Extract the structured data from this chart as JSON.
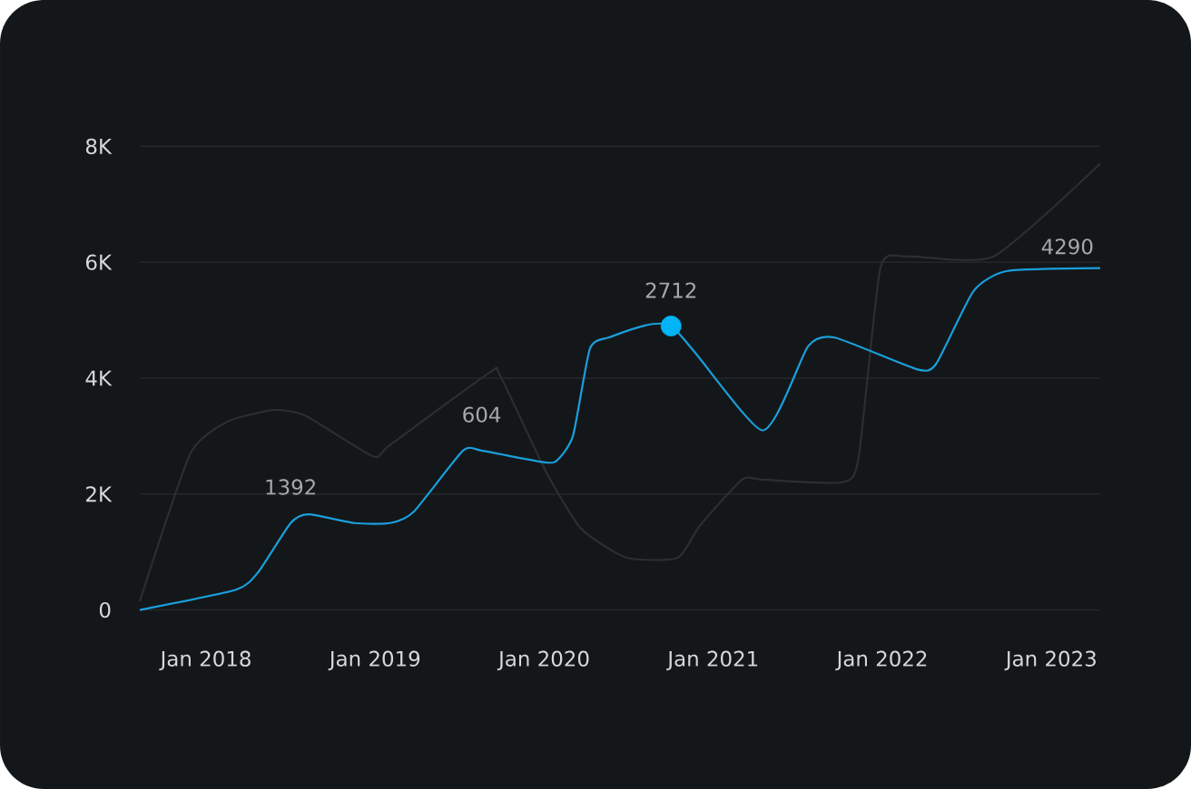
{
  "chart_data": {
    "type": "line",
    "xlim": [
      "2017-08-10",
      "2023-04-15"
    ],
    "ylim": [
      0,
      8000
    ],
    "xticks": [
      {
        "value": "2018-01-01",
        "label": "Jan 2018"
      },
      {
        "value": "2019-01-01",
        "label": "Jan 2019"
      },
      {
        "value": "2020-01-01",
        "label": "Jan 2020"
      },
      {
        "value": "2021-01-01",
        "label": "Jan 2021"
      },
      {
        "value": "2022-01-01",
        "label": "Jan 2022"
      },
      {
        "value": "2023-01-01",
        "label": "Jan 2023"
      }
    ],
    "yticks": [
      0,
      {
        "value": 2000,
        "label": "2K"
      },
      {
        "value": 4000,
        "label": "4K"
      },
      {
        "value": 6000,
        "label": "6K"
      },
      {
        "value": 8000,
        "label": "8K"
      }
    ],
    "grid": "y",
    "annotations": [
      {
        "text": "1392",
        "x": "2018-07-01",
        "y": 1500
      },
      {
        "text": "604",
        "x": "2019-08-18",
        "y": 2750
      },
      {
        "text": "2712",
        "x": "2020-10-01",
        "y": 4900
      },
      {
        "text": "4290",
        "x": "2023-04-15",
        "y": 5900
      }
    ],
    "series": [
      {
        "color": "#2c2e30",
        "x": [
          "2017-08-10",
          "2017-11-28",
          "2018-02-17",
          "2018-05-25",
          "2018-08-03",
          "2018-12-27",
          "2019-02-03",
          "2019-09-05",
          "2019-09-27",
          "2020-01-04",
          "2020-03-20",
          "2020-06-27",
          "2020-10-15",
          "2020-12-02",
          "2021-03-02",
          "2021-04-15",
          "2021-10-04",
          "2021-11-10",
          "2021-12-27",
          "2022-02-24",
          "2022-08-28",
          "2023-04-15"
        ],
        "values": [
          150,
          2700,
          3250,
          3450,
          3350,
          2650,
          2850,
          4100,
          4050,
          2400,
          1400,
          900,
          900,
          1450,
          2250,
          2250,
          2200,
          2600,
          5900,
          6100,
          6100,
          7700
        ]
      },
      {
        "color": "#1a9fdc",
        "x": [
          "2017-08-10",
          "2018-03-05",
          "2018-04-22",
          "2018-07-01",
          "2018-08-10",
          "2018-11-17",
          "2019-02-03",
          "2019-03-24",
          "2019-07-08",
          "2019-08-18",
          "2019-11-25",
          "2020-01-23",
          "2020-03-02",
          "2020-04-08",
          "2020-05-18",
          "2020-10-01",
          "2021-04-15",
          "2021-07-23",
          "2021-09-20",
          "2022-03-16",
          "2022-04-26",
          "2022-07-15",
          "2022-09-27",
          "2023-04-15"
        ],
        "values": [
          0,
          350,
          650,
          1500,
          1650,
          1500,
          1500,
          1700,
          2750,
          2750,
          2600,
          2550,
          3000,
          4500,
          4700,
          4900,
          3100,
          4550,
          4700,
          4150,
          4250,
          5500,
          5850,
          5900
        ]
      },
      {
        "type": "scatter",
        "color": "#00b4f5",
        "x": [
          "2020-10-01"
        ],
        "values": [
          4900
        ]
      }
    ]
  }
}
